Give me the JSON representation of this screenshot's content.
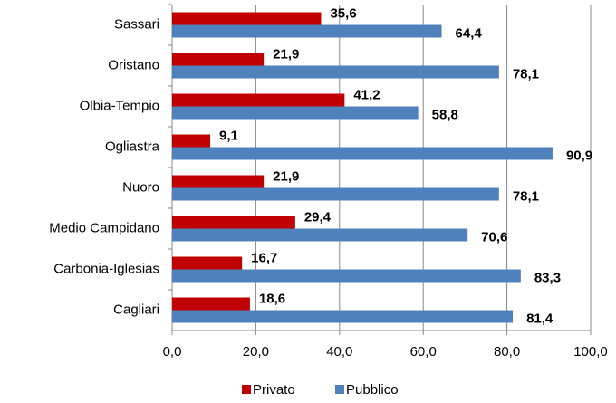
{
  "chart_data": {
    "type": "hbar",
    "categories": [
      "Sassari",
      "Oristano",
      "Olbia-Tempio",
      "Ogliastra",
      "Nuoro",
      "Medio Campidano",
      "Carbonia-Iglesias",
      "Cagliari"
    ],
    "series": [
      {
        "name": "Privato",
        "color": "#c00000",
        "values": [
          35.6,
          21.9,
          41.2,
          9.1,
          21.9,
          29.4,
          16.7,
          18.6
        ],
        "value_labels": [
          "35,6",
          "21,9",
          "41,2",
          "9,1",
          "21,9",
          "29,4",
          "16,7",
          "18,6"
        ]
      },
      {
        "name": "Pubblico",
        "color": "#4f81bd",
        "values": [
          64.4,
          78.1,
          58.8,
          90.9,
          78.1,
          70.6,
          83.3,
          81.4
        ],
        "value_labels": [
          "64,4",
          "78,1",
          "58,8",
          "90,9",
          "78,1",
          "70,6",
          "83,3",
          "81,4"
        ]
      }
    ],
    "xlim": [
      0,
      100
    ],
    "xticks": [
      {
        "value": 0,
        "label": "0,0"
      },
      {
        "value": 20,
        "label": "20,0"
      },
      {
        "value": 40,
        "label": "40,0"
      },
      {
        "value": 60,
        "label": "60,0"
      },
      {
        "value": 80,
        "label": "80,0"
      },
      {
        "value": 100,
        "label": "100,0"
      }
    ],
    "grid": true,
    "legend": "bottom"
  }
}
